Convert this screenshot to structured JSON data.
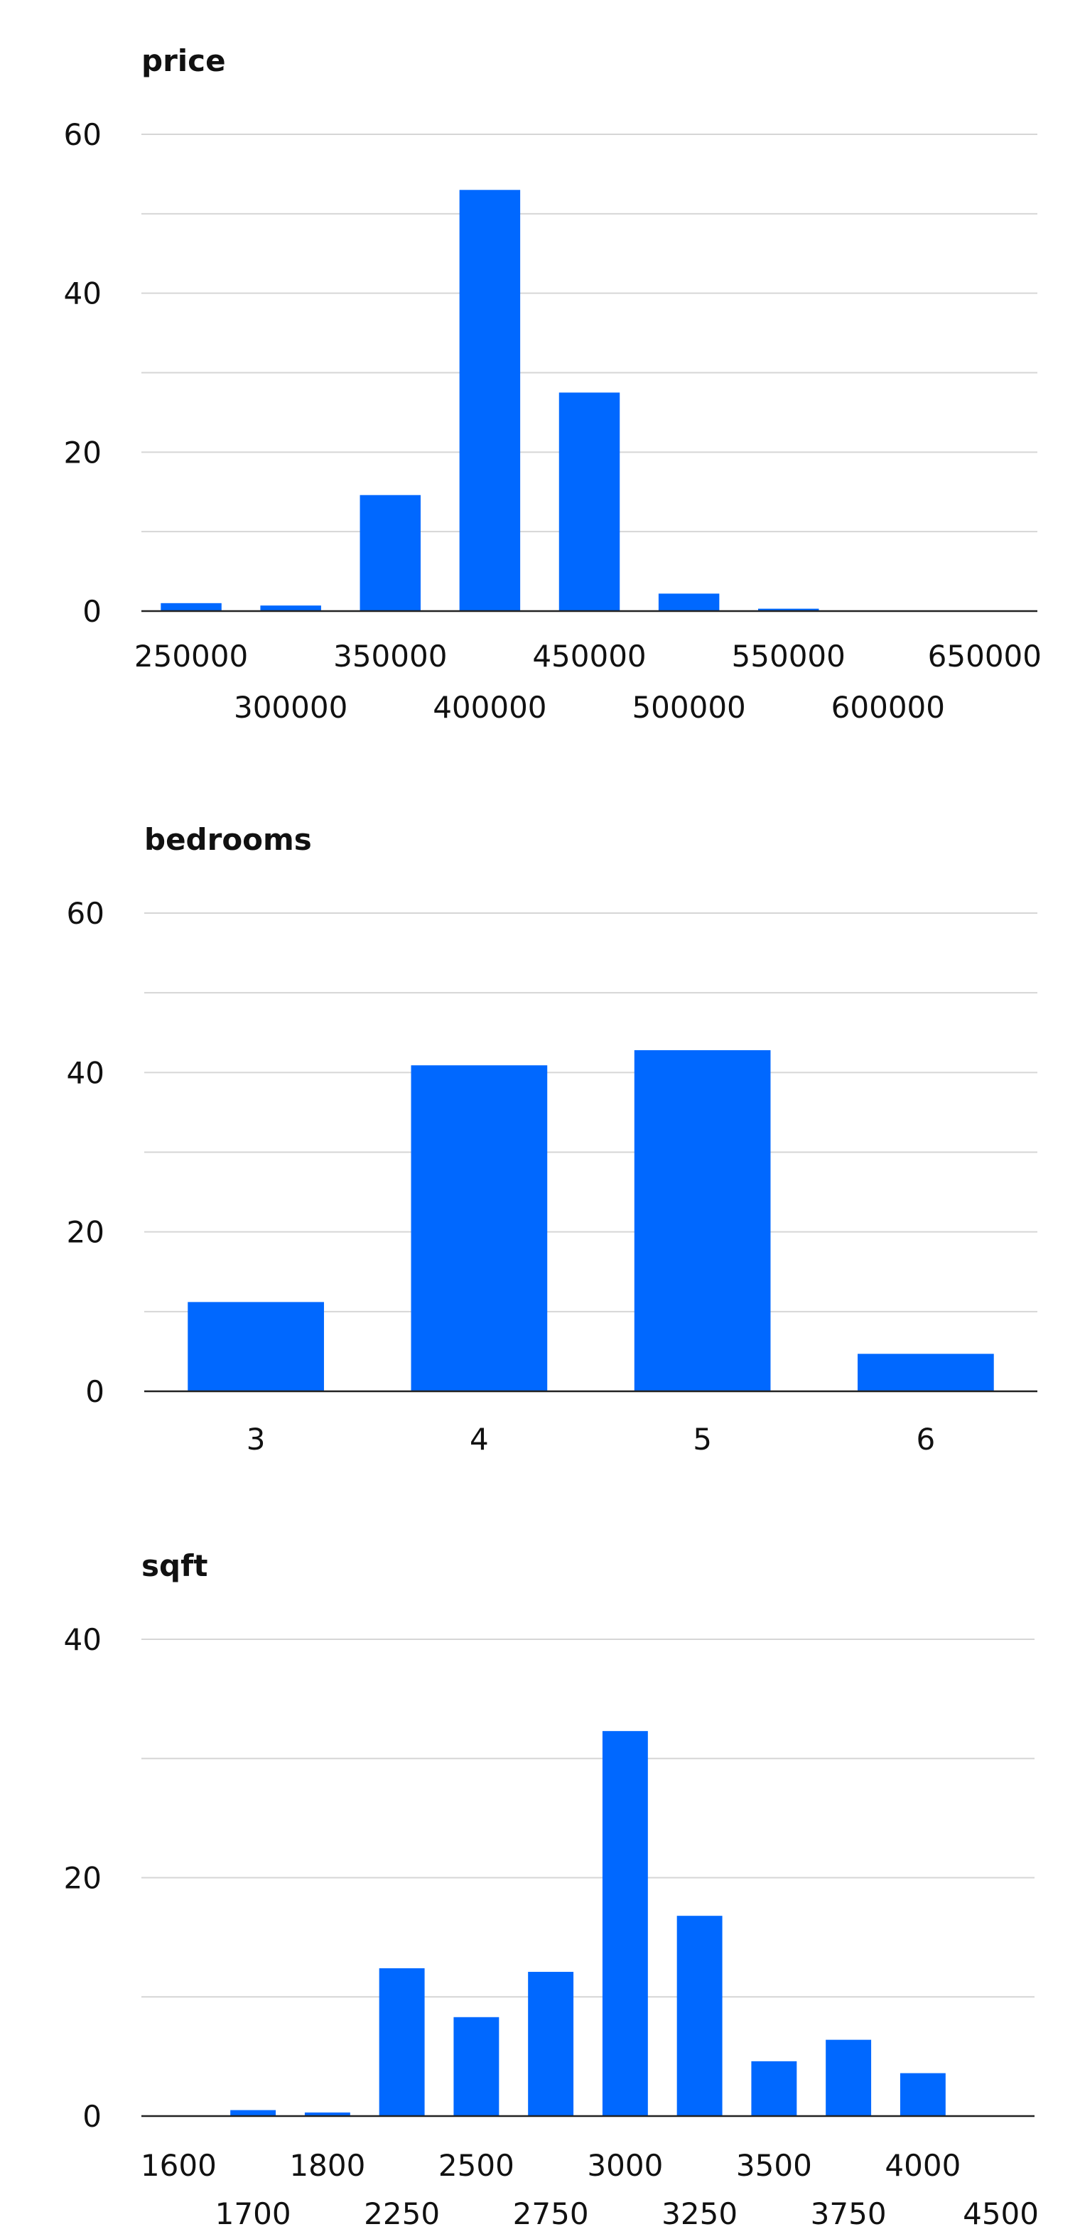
{
  "colors": {
    "bar": "#0068FF",
    "grid": "#d6d6d6",
    "axis": "#222222"
  },
  "chart_data": [
    {
      "type": "bar",
      "title": "price",
      "xlabel": "",
      "ylabel": "",
      "categories": [
        "250000",
        "300000",
        "350000",
        "400000",
        "450000",
        "500000",
        "550000",
        "600000",
        "650000"
      ],
      "values": [
        1,
        0.7,
        14.6,
        53,
        27.5,
        2.2,
        0.3,
        0,
        0
      ],
      "ylim": [
        0,
        60
      ],
      "yticks": [
        0,
        20,
        40,
        60
      ],
      "grid_step": 10,
      "grid": true,
      "staggered_labels": true
    },
    {
      "type": "bar",
      "title": "bedrooms",
      "xlabel": "",
      "ylabel": "",
      "categories": [
        "3",
        "4",
        "5",
        "6"
      ],
      "values": [
        11.2,
        40.9,
        42.8,
        4.7
      ],
      "ylim": [
        0,
        60
      ],
      "yticks": [
        0,
        20,
        40,
        60
      ],
      "grid_step": 10,
      "grid": true,
      "staggered_labels": false
    },
    {
      "type": "bar",
      "title": "sqft",
      "xlabel": "",
      "ylabel": "",
      "categories": [
        "1600",
        "1700",
        "1800",
        "2250",
        "2500",
        "2750",
        "3000",
        "3250",
        "3500",
        "3750",
        "4000",
        "4500"
      ],
      "values": [
        0,
        0.5,
        0.3,
        12.4,
        8.3,
        12.1,
        32.3,
        16.8,
        4.6,
        6.4,
        3.6,
        0
      ],
      "ylim": [
        0,
        40
      ],
      "yticks": [
        0,
        20,
        40
      ],
      "grid_step": 10,
      "grid": true,
      "staggered_labels": true
    }
  ]
}
